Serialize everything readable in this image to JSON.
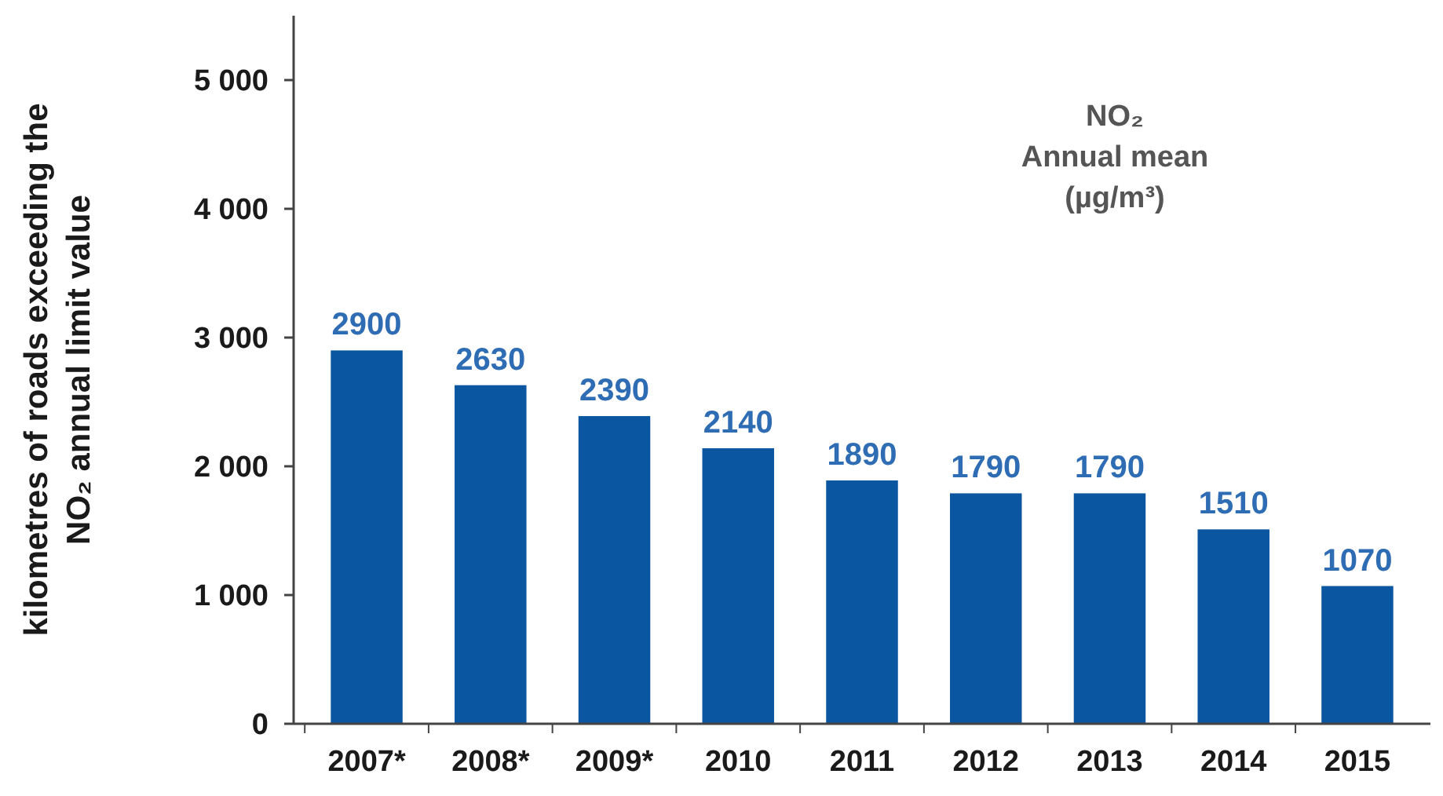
{
  "chart_data": {
    "type": "bar",
    "ylabel": "kilometres of roads exceeding the\nNO₂ annual limit value",
    "categories": [
      "2007*",
      "2008*",
      "2009*",
      "2010",
      "2011",
      "2012",
      "2013",
      "2014",
      "2015"
    ],
    "values": [
      2900,
      2630,
      2390,
      2140,
      1890,
      1790,
      1790,
      1510,
      1070
    ],
    "color": "#0b56a0",
    "data_labels": true,
    "ylim": [
      0,
      5500
    ],
    "yticks": [
      0,
      {
        "value": 1000,
        "label": "1 000"
      },
      {
        "value": 2000,
        "label": "2 000"
      },
      {
        "value": 3000,
        "label": "3 000"
      },
      {
        "value": 4000,
        "label": "4 000"
      },
      {
        "value": 5000,
        "label": "5 000"
      }
    ],
    "annotations": [
      "NO₂",
      "Annual mean",
      "(µg/m³)"
    ]
  }
}
